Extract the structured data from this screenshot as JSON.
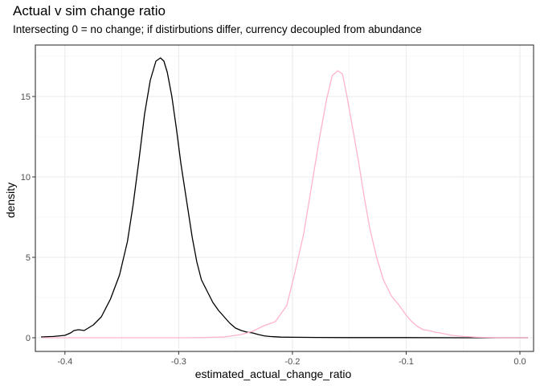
{
  "chart_data": {
    "type": "line",
    "title": "Actual v sim change ratio",
    "subtitle": "Intersecting 0 = no change; if distirbutions differ, currency decoupled from abundance",
    "xlabel": "estimated_actual_change_ratio",
    "ylabel": "density",
    "xlim": [
      -0.426,
      0.012
    ],
    "ylim": [
      -0.85,
      18.2
    ],
    "x_ticks": [
      -0.4,
      -0.3,
      -0.2,
      -0.1,
      0.0
    ],
    "x_tick_labels": [
      "-0.4",
      "-0.3",
      "-0.2",
      "-0.1",
      "0.0"
    ],
    "y_ticks": [
      0,
      5,
      10,
      15
    ],
    "y_tick_labels": [
      "0",
      "5",
      "10",
      "15"
    ],
    "grid": true,
    "theme": "bw",
    "series": [
      {
        "color": "#000000",
        "x": [
          -0.421,
          -0.41,
          -0.4,
          -0.395,
          -0.392,
          -0.388,
          -0.383,
          -0.375,
          -0.368,
          -0.36,
          -0.352,
          -0.345,
          -0.34,
          -0.335,
          -0.33,
          -0.325,
          -0.32,
          -0.316,
          -0.313,
          -0.31,
          -0.306,
          -0.302,
          -0.298,
          -0.293,
          -0.288,
          -0.284,
          -0.28,
          -0.275,
          -0.27,
          -0.265,
          -0.26,
          -0.255,
          -0.25,
          -0.245,
          -0.24,
          -0.235,
          -0.23,
          -0.225,
          -0.22,
          -0.215,
          -0.21,
          -0.2,
          -0.18,
          -0.15,
          -0.1,
          -0.05,
          0.0,
          0.007
        ],
        "y": [
          0.05,
          0.08,
          0.15,
          0.3,
          0.45,
          0.5,
          0.45,
          0.8,
          1.3,
          2.4,
          3.9,
          6.0,
          8.3,
          11.0,
          13.9,
          16.0,
          17.2,
          17.4,
          17.2,
          16.5,
          15.0,
          13.0,
          10.8,
          8.5,
          6.2,
          4.7,
          3.6,
          2.9,
          2.2,
          1.7,
          1.3,
          0.9,
          0.6,
          0.45,
          0.35,
          0.3,
          0.2,
          0.12,
          0.08,
          0.06,
          0.04,
          0.03,
          0.02,
          0.01,
          0.01,
          0.0,
          0.0,
          0.0
        ]
      },
      {
        "color": "#ffb3cd",
        "x": [
          -0.42,
          -0.3,
          -0.28,
          -0.26,
          -0.245,
          -0.235,
          -0.225,
          -0.215,
          -0.205,
          -0.198,
          -0.19,
          -0.183,
          -0.176,
          -0.17,
          -0.165,
          -0.16,
          -0.156,
          -0.152,
          -0.147,
          -0.142,
          -0.137,
          -0.132,
          -0.126,
          -0.12,
          -0.113,
          -0.106,
          -0.1,
          -0.095,
          -0.09,
          -0.085,
          -0.08,
          -0.075,
          -0.07,
          -0.06,
          -0.05,
          -0.04,
          -0.03,
          -0.02,
          0.0,
          0.007
        ],
        "y": [
          0.0,
          0.0,
          0.01,
          0.05,
          0.2,
          0.4,
          0.75,
          1.0,
          2.0,
          4.0,
          6.5,
          9.5,
          12.5,
          14.8,
          16.3,
          16.6,
          16.4,
          15.0,
          13.0,
          11.0,
          8.8,
          6.8,
          5.0,
          3.6,
          2.6,
          2.0,
          1.4,
          1.0,
          0.7,
          0.5,
          0.45,
          0.35,
          0.3,
          0.15,
          0.08,
          0.04,
          0.02,
          0.01,
          0.0,
          0.0
        ]
      }
    ]
  }
}
